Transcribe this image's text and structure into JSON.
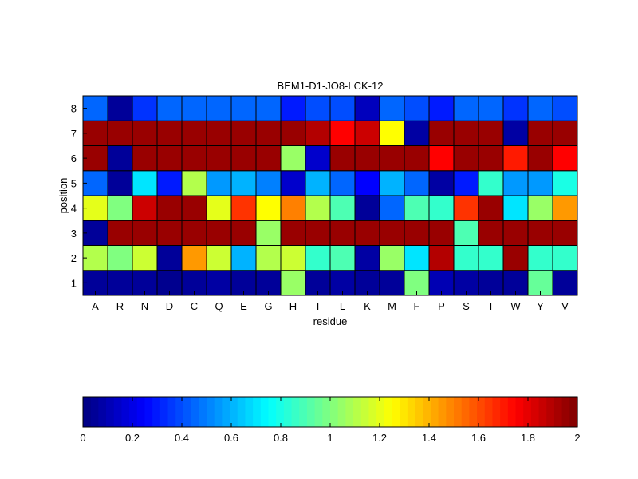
{
  "chart_data": {
    "type": "heatmap",
    "title": "BEM1-D1-JO8-LCK-12",
    "xlabel": "residue",
    "ylabel": "position",
    "x_categories": [
      "A",
      "R",
      "N",
      "D",
      "C",
      "Q",
      "E",
      "G",
      "H",
      "I",
      "L",
      "K",
      "M",
      "F",
      "P",
      "S",
      "T",
      "W",
      "Y",
      "V"
    ],
    "y_categories": [
      "1",
      "2",
      "3",
      "4",
      "5",
      "6",
      "7",
      "8"
    ],
    "colormap": "jet",
    "clim": [
      0,
      2
    ],
    "colorbar": {
      "orientation": "horizontal",
      "placement": "bottom",
      "ticks": [
        0,
        0.2,
        0.4,
        0.6,
        0.8,
        1,
        1.2,
        1.4,
        1.6,
        1.8,
        2
      ],
      "tick_labels": [
        "0",
        "0.2",
        "0.4",
        "0.6",
        "0.8",
        "1",
        "1.2",
        "1.4",
        "1.6",
        "1.8",
        "2"
      ]
    },
    "values": {
      "1": [
        0.05,
        0.05,
        0.05,
        0.03,
        0.05,
        0.07,
        0.05,
        0.05,
        1.05,
        0.05,
        0.07,
        0.05,
        0.05,
        1.0,
        0.1,
        0.07,
        0.05,
        0.05,
        0.95,
        0.05
      ],
      "2": [
        1.1,
        1.0,
        1.15,
        0.05,
        1.45,
        1.15,
        0.6,
        1.1,
        1.15,
        0.85,
        0.9,
        0.07,
        1.05,
        0.7,
        1.9,
        0.85,
        0.85,
        1.95,
        0.85,
        0.85
      ],
      "3": [
        0.05,
        1.95,
        1.95,
        1.95,
        1.95,
        1.95,
        1.95,
        1.05,
        1.95,
        1.95,
        1.95,
        1.95,
        1.95,
        1.95,
        1.95,
        0.9,
        1.95,
        1.95,
        1.95,
        1.95
      ],
      "4": [
        1.2,
        1.0,
        1.85,
        1.95,
        1.95,
        1.2,
        1.65,
        1.25,
        1.5,
        1.1,
        0.9,
        0.05,
        0.45,
        0.9,
        0.85,
        1.65,
        1.95,
        0.7,
        1.05,
        1.45
      ],
      "5": [
        0.45,
        0.05,
        0.7,
        0.3,
        1.1,
        0.55,
        0.6,
        0.5,
        0.15,
        0.6,
        0.45,
        0.25,
        0.6,
        0.45,
        0.07,
        0.3,
        0.85,
        0.55,
        0.55,
        0.8
      ],
      "6": [
        1.95,
        0.05,
        1.95,
        1.95,
        1.95,
        1.95,
        1.95,
        1.95,
        1.05,
        0.15,
        1.95,
        1.95,
        1.95,
        1.95,
        1.75,
        1.95,
        1.95,
        1.7,
        1.95,
        1.75
      ],
      "7": [
        1.95,
        1.95,
        1.95,
        1.95,
        1.95,
        1.95,
        1.95,
        1.95,
        1.95,
        1.9,
        1.75,
        1.85,
        1.25,
        0.07,
        1.95,
        1.95,
        1.95,
        0.07,
        1.95,
        1.95
      ],
      "8": [
        0.45,
        0.05,
        0.35,
        0.45,
        0.45,
        0.45,
        0.45,
        0.45,
        0.3,
        0.4,
        0.4,
        0.12,
        0.45,
        0.4,
        0.3,
        0.45,
        0.45,
        0.35,
        0.45,
        0.4
      ]
    }
  }
}
